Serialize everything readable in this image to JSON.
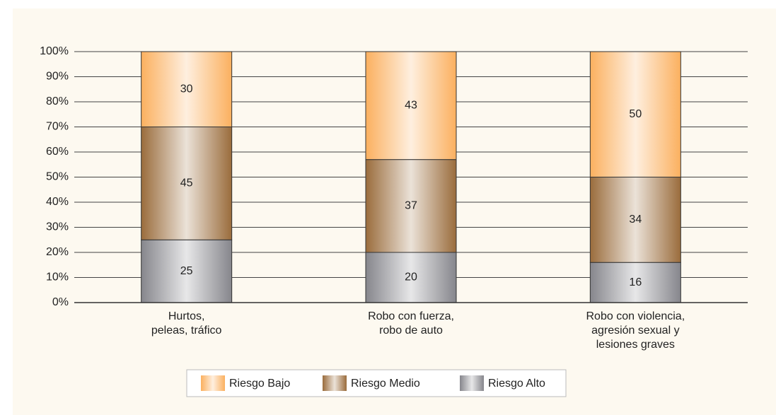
{
  "chart_data": {
    "type": "stacked_bar",
    "categories": [
      "Hurtos,\npeleas, tráfico",
      "Robo con fuerza,\nrobo de auto",
      "Robo con violencia,\nagresión sexual y\nlesiones graves"
    ],
    "series": [
      {
        "name": "Riesgo Bajo",
        "color": "#fbb05f",
        "values": [
          30,
          43,
          50
        ]
      },
      {
        "name": "Riesgo Medio",
        "color": "#9a6c3c",
        "values": [
          45,
          37,
          34
        ]
      },
      {
        "name": "Riesgo Alto",
        "color": "#86868c",
        "values": [
          25,
          20,
          16
        ]
      }
    ],
    "ylim": [
      0,
      100
    ],
    "yticks": [
      {
        "value": 0,
        "label": "0%"
      },
      {
        "value": 10,
        "label": "10%"
      },
      {
        "value": 20,
        "label": "20%"
      },
      {
        "value": 30,
        "label": "30%"
      },
      {
        "value": 40,
        "label": "40%"
      },
      {
        "value": 50,
        "label": "50%"
      },
      {
        "value": 60,
        "label": "60%"
      },
      {
        "value": 70,
        "label": "70%"
      },
      {
        "value": 80,
        "label": "80%"
      },
      {
        "value": 90,
        "label": "90%"
      },
      {
        "value": 100,
        "label": "100%"
      }
    ],
    "grid": true
  }
}
